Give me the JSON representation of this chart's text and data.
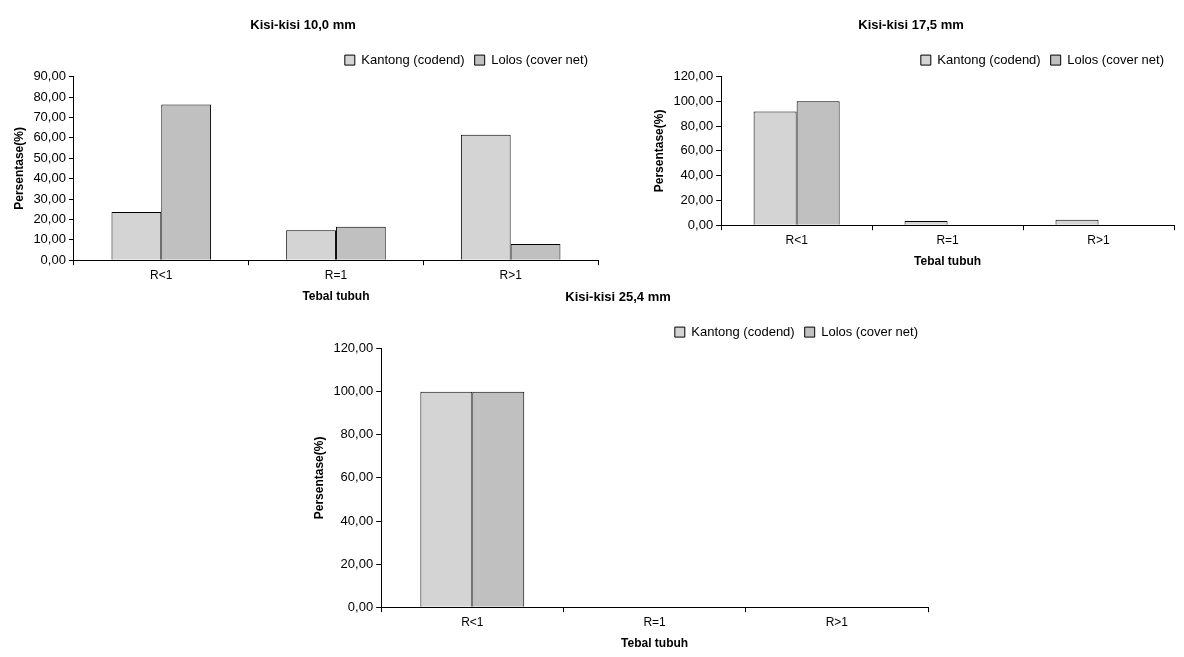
{
  "chart_data": [
    {
      "type": "bar",
      "title": "Kisi-kisi 10,0 mm",
      "xlabel": "Tebal tubuh",
      "ylabel": "Persentase(%)",
      "categories": [
        "R<1",
        "R=1",
        "R>1"
      ],
      "series": [
        {
          "name": "Kantong (codend)",
          "color": "#d4d4d4",
          "values": [
            23.6,
            14.7,
            61.5
          ]
        },
        {
          "name": "Lolos (cover net)",
          "color": "#c0c0c0",
          "values": [
            76.3,
            16.4,
            7.9
          ]
        }
      ],
      "ylim": [
        0,
        90
      ],
      "yticks": [
        {
          "value": 0,
          "label": "0,00"
        },
        {
          "value": 10,
          "label": "10,00"
        },
        {
          "value": 20,
          "label": "20,00"
        },
        {
          "value": 30,
          "label": "30,00"
        },
        {
          "value": 40,
          "label": "40,00"
        },
        {
          "value": 50,
          "label": "50,00"
        },
        {
          "value": 60,
          "label": "60,00"
        },
        {
          "value": 70,
          "label": "70,00"
        },
        {
          "value": 80,
          "label": "80,00"
        },
        {
          "value": 90,
          "label": "90,00"
        }
      ],
      "grid": false,
      "legend": "top right"
    },
    {
      "type": "bar",
      "title": "Kisi-kisi 17,5 mm",
      "xlabel": "Tebal tubuh",
      "ylabel": "Persentase(%)",
      "categories": [
        "R<1",
        "R=1",
        "R>1"
      ],
      "series": [
        {
          "name": "Kantong (codend)",
          "color": "#d4d4d4",
          "values": [
            91.8,
            3.3,
            4.5
          ]
        },
        {
          "name": "Lolos (cover net)",
          "color": "#c0c0c0",
          "values": [
            100,
            0,
            0
          ]
        }
      ],
      "ylim": [
        0,
        120
      ],
      "yticks": [
        {
          "value": 0,
          "label": "0,00"
        },
        {
          "value": 20,
          "label": "20,00"
        },
        {
          "value": 40,
          "label": "40,00"
        },
        {
          "value": 60,
          "label": "60,00"
        },
        {
          "value": 80,
          "label": "80,00"
        },
        {
          "value": 100,
          "label": "100,00"
        },
        {
          "value": 120,
          "label": "120,00"
        }
      ],
      "grid": false,
      "legend": "top right"
    },
    {
      "type": "bar",
      "title": "Kisi-kisi 25,4 mm",
      "xlabel": "Tebal tubuh",
      "ylabel": "Persentase(%)",
      "categories": [
        "R<1",
        "R=1",
        "R>1"
      ],
      "series": [
        {
          "name": "Kantong (codend)",
          "color": "#d4d4d4",
          "values": [
            100,
            0,
            0
          ]
        },
        {
          "name": "Lolos (cover net)",
          "color": "#c0c0c0",
          "values": [
            100,
            0,
            0
          ]
        }
      ],
      "ylim": [
        0,
        120
      ],
      "yticks": [
        {
          "value": 0,
          "label": "0,00"
        },
        {
          "value": 20,
          "label": "20,00"
        },
        {
          "value": 40,
          "label": "40,00"
        },
        {
          "value": 60,
          "label": "60,00"
        },
        {
          "value": 80,
          "label": "80,00"
        },
        {
          "value": 100,
          "label": "100,00"
        },
        {
          "value": 120,
          "label": "120,00"
        }
      ],
      "grid": false,
      "legend": "top right"
    }
  ]
}
